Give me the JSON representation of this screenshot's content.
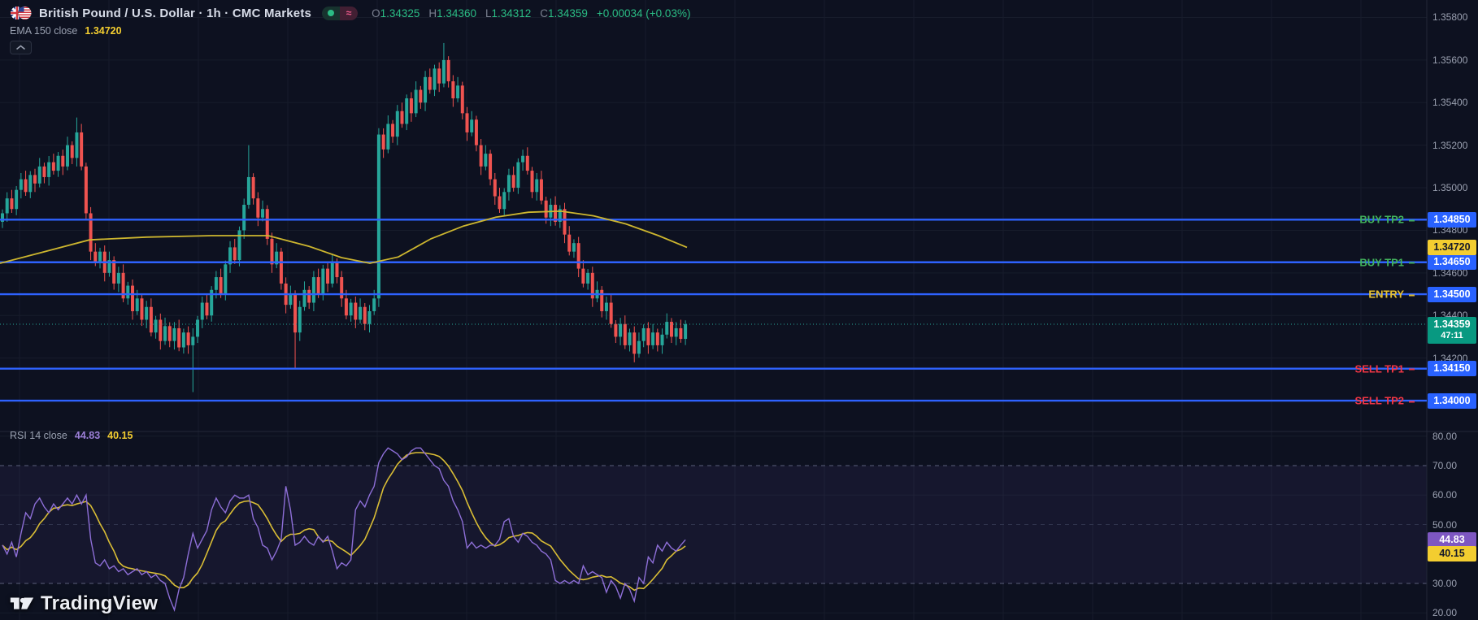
{
  "header": {
    "title": "British Pound / U.S. Dollar · 1h · CMC Markets",
    "delayed_glyph": "≈",
    "ohlc": {
      "o_label": "O",
      "o_value": "1.34325",
      "h_label": "H",
      "h_value": "1.34360",
      "l_label": "L",
      "l_value": "1.34312",
      "c_label": "C",
      "c_value": "1.34359",
      "change": "+0.00034 (+0.03%)"
    },
    "ema_row": {
      "label": "EMA 150 close",
      "value": "1.34720"
    }
  },
  "rsi_row": {
    "label": "RSI 14 close",
    "value1": "44.83",
    "value2": "40.15"
  },
  "logo": {
    "text": "TradingView"
  },
  "colors": {
    "bg": "#0d1120",
    "up": "#26a69a",
    "down": "#ef5350",
    "level_blue": "#2e62fe",
    "ema_yellow": "#cdb62f",
    "rsi_purple": "#8e6fd8",
    "rsi_yellow": "#d9bd35",
    "current_dotted": "#26a69a",
    "tag_blue_bg": "#2962ff",
    "tag_green_bg": "#089981",
    "tag_yellow_bg": "#f3cd30",
    "tag_purple_bg": "#7e57c2",
    "buy_text": "#42b35c",
    "entry_text": "#e8c330",
    "sell_text": "#f23645",
    "axis_text": "#9aa0b0",
    "grid": "#171c2b",
    "band_fill": "rgba(126,87,194,0.09)",
    "dashed_level": "#5a5f7a",
    "mid_level": "#30344d",
    "divider": "#232838"
  },
  "chart_data": {
    "type": "candlestick",
    "symbol": "GBPUSD",
    "timeframe": "1h",
    "price_pane": {
      "ylim": [
        1.33855,
        1.35882
      ],
      "ticks": [
        {
          "label": "1.35800",
          "price": 1.358
        },
        {
          "label": "1.35600",
          "price": 1.356
        },
        {
          "label": "1.35400",
          "price": 1.354
        },
        {
          "label": "1.35200",
          "price": 1.352
        },
        {
          "label": "1.35000",
          "price": 1.35
        },
        {
          "label": "1.34800",
          "price": 1.348
        },
        {
          "label": "1.34600",
          "price": 1.346
        },
        {
          "label": "1.34400",
          "price": 1.344
        },
        {
          "label": "1.34200",
          "price": 1.342
        }
      ],
      "levels": [
        {
          "label": "BUY TP2",
          "kind": "buy",
          "price": 1.3485,
          "tag": "1.34850"
        },
        {
          "label": "BUY TP1",
          "kind": "buy",
          "price": 1.3465,
          "tag": "1.34650"
        },
        {
          "label": "ENTRY",
          "kind": "entry",
          "price": 1.345,
          "tag": "1.34500"
        },
        {
          "label": "SELL TP1",
          "kind": "sell",
          "price": 1.3415,
          "tag": "1.34150"
        },
        {
          "label": "SELL TP2",
          "kind": "sell",
          "price": 1.34,
          "tag": "1.34000"
        }
      ],
      "current_price": {
        "price": 1.34359,
        "tag": "1.34359",
        "countdown": "47:11"
      },
      "ema": {
        "tag": "1.34720",
        "points": [
          [
            0,
            1.34645
          ],
          [
            50,
            1.34695
          ],
          [
            110,
            1.34755
          ],
          [
            180,
            1.34768
          ],
          [
            260,
            1.34775
          ],
          [
            330,
            1.34775
          ],
          [
            380,
            1.34725
          ],
          [
            420,
            1.34672
          ],
          [
            455,
            1.34645
          ],
          [
            490,
            1.34675
          ],
          [
            530,
            1.3476
          ],
          [
            570,
            1.3482
          ],
          [
            610,
            1.34862
          ],
          [
            650,
            1.34885
          ],
          [
            690,
            1.3489
          ],
          [
            730,
            1.34868
          ],
          [
            770,
            1.3483
          ],
          [
            810,
            1.34775
          ],
          [
            845,
            1.3472
          ]
        ]
      },
      "candles": {
        "x0": 3,
        "pitch": 5.715,
        "first_open": 1.3484,
        "closes": [
          1.3488,
          1.3495,
          1.349,
          1.3499,
          1.3504,
          1.3498,
          1.3506,
          1.3502,
          1.351,
          1.3505,
          1.3512,
          1.3508,
          1.3515,
          1.351,
          1.352,
          1.3514,
          1.3526,
          1.351,
          1.3488,
          1.347,
          1.3465,
          1.347,
          1.346,
          1.3466,
          1.3455,
          1.346,
          1.3448,
          1.3454,
          1.3442,
          1.3448,
          1.3438,
          1.3444,
          1.3432,
          1.3438,
          1.3428,
          1.3435,
          1.3428,
          1.3434,
          1.3425,
          1.3432,
          1.3426,
          1.343,
          1.3438,
          1.3446,
          1.344,
          1.3452,
          1.3458,
          1.345,
          1.3464,
          1.3472,
          1.3466,
          1.348,
          1.3492,
          1.3505,
          1.3495,
          1.3486,
          1.349,
          1.3476,
          1.3464,
          1.347,
          1.3455,
          1.3445,
          1.345,
          1.3432,
          1.3444,
          1.3452,
          1.3446,
          1.3458,
          1.345,
          1.3462,
          1.3455,
          1.3465,
          1.3458,
          1.3448,
          1.344,
          1.3446,
          1.3438,
          1.3444,
          1.3436,
          1.3442,
          1.3448,
          1.3525,
          1.3518,
          1.353,
          1.3524,
          1.3536,
          1.353,
          1.3542,
          1.3535,
          1.3546,
          1.354,
          1.3552,
          1.3546,
          1.3556,
          1.3549,
          1.356,
          1.355,
          1.3542,
          1.3548,
          1.3535,
          1.3526,
          1.3532,
          1.352,
          1.351,
          1.3516,
          1.3504,
          1.3496,
          1.349,
          1.3498,
          1.3506,
          1.35,
          1.3512,
          1.3515,
          1.3508,
          1.3498,
          1.3504,
          1.3494,
          1.3486,
          1.3492,
          1.3484,
          1.349,
          1.3478,
          1.347,
          1.3474,
          1.3462,
          1.3455,
          1.346,
          1.3448,
          1.3452,
          1.3442,
          1.3446,
          1.3436,
          1.343,
          1.3436,
          1.3426,
          1.3432,
          1.3422,
          1.3428,
          1.3434,
          1.3426,
          1.3432,
          1.3426,
          1.3431,
          1.3437,
          1.343,
          1.3434,
          1.3429,
          1.34359
        ],
        "wick_overrides": {
          "16": {
            "h": 1.3533
          },
          "41": {
            "l": 1.3404
          },
          "53": {
            "h": 1.352
          },
          "63": {
            "l": 1.3415
          },
          "81": {
            "h": 1.3528,
            "l": 1.3444
          },
          "95": {
            "h": 1.3568
          }
        }
      }
    },
    "rsi_pane": {
      "ylim": [
        17.6,
        81.6
      ],
      "band": [
        30,
        70
      ],
      "dashed_levels": [
        70,
        30
      ],
      "mid_level": 50,
      "ticks": [
        {
          "label": "80.00",
          "value": 80
        },
        {
          "label": "70.00",
          "value": 70
        },
        {
          "label": "60.00",
          "value": 60
        },
        {
          "label": "50.00",
          "value": 50
        },
        {
          "label": "30.00",
          "value": 30
        },
        {
          "label": "20.00",
          "value": 20
        }
      ],
      "tags": [
        {
          "label": "44.83",
          "value": 44.83,
          "style": "purple"
        },
        {
          "label": "40.15",
          "value": 40.15,
          "style": "yellow"
        }
      ],
      "values": [
        43,
        40,
        44,
        39,
        47,
        54,
        52,
        57,
        59,
        56,
        54,
        57,
        55,
        57,
        59,
        57,
        60,
        57,
        60,
        45,
        37,
        36,
        38,
        35,
        36,
        34,
        35,
        33,
        34,
        35,
        33,
        34,
        32,
        33,
        31,
        30,
        25,
        21,
        28,
        32,
        40,
        47,
        42,
        45,
        48,
        55,
        59,
        56,
        54,
        58,
        60,
        59,
        59,
        60,
        52,
        49,
        43,
        42,
        38,
        41,
        45,
        63,
        55,
        43,
        44,
        46,
        44,
        43,
        46,
        44,
        46,
        41,
        35,
        37,
        36,
        38,
        55,
        58,
        56,
        60,
        63,
        71,
        74,
        76,
        75,
        74,
        72,
        73,
        75,
        76,
        76,
        74,
        72,
        70,
        69,
        65,
        63,
        58,
        55,
        51,
        42,
        44,
        42,
        43,
        42,
        43,
        43,
        45,
        51,
        52,
        46,
        44,
        47,
        46,
        44,
        43,
        41,
        40,
        38,
        31,
        30,
        31,
        30,
        31,
        30,
        36,
        33,
        34,
        33,
        32,
        27,
        31,
        29,
        25,
        30,
        28,
        24,
        32,
        30,
        39,
        37,
        43,
        41,
        44,
        42,
        41,
        43,
        44.83
      ]
    }
  }
}
